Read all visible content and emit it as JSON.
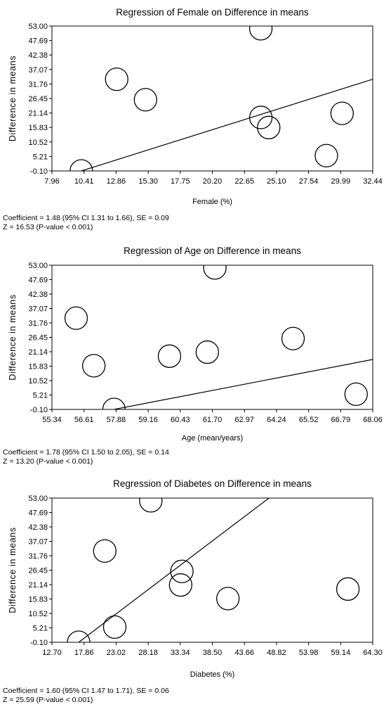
{
  "chart_data": [
    {
      "type": "scatter",
      "title": "Regression of Female on Difference in means",
      "xlabel": "Female (%)",
      "ylabel": "Difference in means",
      "xticks": [
        "7.96",
        "10.41",
        "12.86",
        "15.30",
        "17.75",
        "20.20",
        "22.65",
        "25.10",
        "27.54",
        "29.99",
        "32.44"
      ],
      "yticks": [
        "53.00",
        "47.69",
        "42.38",
        "37.07",
        "31.76",
        "26.45",
        "21.14",
        "15.83",
        "10.52",
        "5.21",
        "-0.10"
      ],
      "xlim": [
        7.96,
        32.44
      ],
      "ylim": [
        -0.1,
        53.0
      ],
      "grid": false,
      "points": [
        {
          "x": 10.2,
          "y": -0.1
        },
        {
          "x": 12.9,
          "y": 33.5
        },
        {
          "x": 15.1,
          "y": 26.0
        },
        {
          "x": 23.9,
          "y": 52.0
        },
        {
          "x": 23.9,
          "y": 19.5
        },
        {
          "x": 24.5,
          "y": 15.8
        },
        {
          "x": 28.9,
          "y": 5.5
        },
        {
          "x": 30.1,
          "y": 21.0
        }
      ],
      "regression_line": {
        "x": [
          10.2,
          32.44
        ],
        "y": [
          -0.1,
          33.5
        ]
      },
      "stats_line1": "Coefficient = 1.48 (95% CI 1.31 to 1.66), SE = 0.09",
      "stats_line2": "Z = 16.53 (P-value < 0.001)"
    },
    {
      "type": "scatter",
      "title": "Regression of Age on Difference in means",
      "xlabel": "Age (mean/years)",
      "ylabel": "Difference in means",
      "xticks": [
        "55.34",
        "56.61",
        "57.88",
        "59.16",
        "60.43",
        "61.70",
        "62.97",
        "64.24",
        "65.52",
        "66.79",
        "68.06"
      ],
      "yticks": [
        "53.00",
        "47.69",
        "42.38",
        "37.07",
        "31.76",
        "26.45",
        "21.14",
        "15.83",
        "10.52",
        "5.21",
        "-0.10"
      ],
      "xlim": [
        55.34,
        68.06
      ],
      "ylim": [
        -0.1,
        53.0
      ],
      "grid": false,
      "points": [
        {
          "x": 56.3,
          "y": 33.5
        },
        {
          "x": 57.0,
          "y": 16.0
        },
        {
          "x": 57.8,
          "y": -0.1
        },
        {
          "x": 60.0,
          "y": 19.5
        },
        {
          "x": 61.5,
          "y": 21.0
        },
        {
          "x": 61.8,
          "y": 52.0
        },
        {
          "x": 64.9,
          "y": 26.0
        },
        {
          "x": 67.4,
          "y": 5.5
        }
      ],
      "regression_line": {
        "x": [
          57.8,
          68.06
        ],
        "y": [
          -0.1,
          18.3
        ]
      },
      "stats_line1": "Coefficient = 1.78 (95% CI 1.50 to 2.05), SE = 0.14",
      "stats_line2": "Z = 13.20 (P-value < 0.001)"
    },
    {
      "type": "scatter",
      "title": "Regression of Diabetes on Difference in means",
      "xlabel": "Diabetes (%)",
      "ylabel": "Difference in means",
      "xticks": [
        "12.70",
        "17.86",
        "23.02",
        "28.18",
        "33.34",
        "38.50",
        "43.66",
        "48.82",
        "53.98",
        "59.14",
        "64.30"
      ],
      "yticks": [
        "53.00",
        "47.69",
        "42.38",
        "37.07",
        "31.76",
        "26.45",
        "21.14",
        "15.83",
        "10.52",
        "5.21",
        "-0.10"
      ],
      "xlim": [
        12.7,
        64.3
      ],
      "ylim": [
        -0.1,
        53.0
      ],
      "grid": false,
      "points": [
        {
          "x": 17.0,
          "y": -0.1
        },
        {
          "x": 21.2,
          "y": 33.5
        },
        {
          "x": 22.8,
          "y": 5.5
        },
        {
          "x": 28.6,
          "y": 52.0
        },
        {
          "x": 33.6,
          "y": 26.0
        },
        {
          "x": 33.4,
          "y": 21.0
        },
        {
          "x": 41.0,
          "y": 16.0
        },
        {
          "x": 60.3,
          "y": 19.5
        }
      ],
      "regression_line": {
        "x": [
          17.0,
          47.6
        ],
        "y": [
          -0.1,
          53.0
        ]
      },
      "stats_line1": "Coefficient = 1.60 (95% CI 1.47 to 1.71), SE = 0.06",
      "stats_line2": "Z = 25.59 (P-value < 0.001)"
    }
  ]
}
